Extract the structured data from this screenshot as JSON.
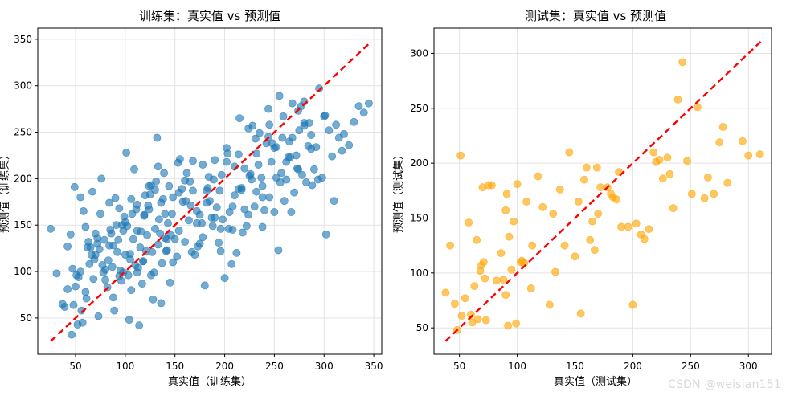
{
  "watermark": "CSDN @weisian151",
  "chart_data": [
    {
      "type": "scatter",
      "title": "训练集：真实值 vs 预测值",
      "xlabel": "真实值（训练集）",
      "ylabel": "预测值（训练集）",
      "xlim": [
        12,
        358
      ],
      "ylim": [
        11,
        362
      ],
      "xticks": [
        50,
        100,
        150,
        200,
        250,
        300,
        350
      ],
      "yticks": [
        50,
        100,
        150,
        200,
        250,
        300,
        350
      ],
      "grid": true,
      "reference_line": {
        "style": "red dashed",
        "x": [
          25,
          346
        ],
        "y": [
          25,
          346
        ]
      },
      "series": [
        {
          "color": "#1f77b4",
          "x": [
            25,
            31,
            37,
            39,
            42,
            42,
            45,
            46,
            47,
            48,
            49,
            50,
            51,
            52,
            53,
            55,
            56,
            57,
            58,
            60,
            61,
            63,
            64,
            65,
            67,
            68,
            69,
            70,
            72,
            73,
            74,
            75,
            76,
            78,
            79,
            80,
            82,
            83,
            84,
            85,
            86,
            87,
            88,
            89,
            90,
            92,
            93,
            94,
            95,
            96,
            97,
            98,
            99,
            100,
            101,
            102,
            103,
            104,
            105,
            106,
            107,
            108,
            109,
            110,
            111,
            112,
            113,
            114,
            115,
            116,
            117,
            118,
            119,
            120,
            121,
            122,
            123,
            124,
            125,
            126,
            127,
            128,
            129,
            130,
            131,
            132,
            133,
            134,
            135,
            136,
            137,
            138,
            139,
            140,
            141,
            142,
            143,
            144,
            145,
            146,
            148,
            150,
            152,
            153,
            155,
            157,
            158,
            160,
            162,
            164,
            165,
            167,
            168,
            170,
            172,
            173,
            175,
            177,
            178,
            180,
            182,
            183,
            185,
            187,
            188,
            190,
            192,
            194,
            195,
            197,
            198,
            200,
            202,
            204,
            205,
            207,
            208,
            210,
            212,
            214,
            215,
            217,
            218,
            220,
            222,
            224,
            225,
            227,
            228,
            230,
            232,
            234,
            235,
            237,
            238,
            240,
            242,
            244,
            245,
            247,
            248,
            250,
            252,
            254,
            255,
            257,
            258,
            260,
            262,
            264,
            265,
            267,
            268,
            270,
            272,
            274,
            275,
            277,
            278,
            280,
            282,
            284,
            285,
            287,
            288,
            290,
            292,
            295,
            298,
            300,
            302,
            305,
            308,
            310,
            312,
            315,
            318,
            320,
            325,
            330,
            335,
            340,
            345,
            60,
            66,
            72,
            80,
            88,
            94,
            100,
            106,
            112,
            118,
            124,
            130,
            136,
            142,
            148,
            154,
            160,
            166,
            172,
            178,
            184,
            190,
            196,
            202,
            208,
            214,
            220,
            226,
            232,
            238,
            244,
            250,
            256,
            262,
            268,
            274,
            280,
            55,
            62,
            70,
            77,
            84,
            91,
            98,
            105,
            112,
            119,
            126,
            133,
            140,
            147,
            154,
            161,
            168,
            175,
            182,
            189,
            196,
            203,
            210,
            217,
            224,
            231,
            238,
            245,
            252,
            259,
            266,
            273,
            280,
            287,
            294,
            301
          ],
          "y": [
            146,
            98,
            65,
            62,
            81,
            127,
            140,
            32,
            103,
            64,
            191,
            84,
            96,
            43,
            94,
            180,
            58,
            45,
            165,
            148,
            71,
            132,
            108,
            126,
            186,
            92,
            113,
            118,
            136,
            52,
            124,
            162,
            200,
            99,
            134,
            91,
            83,
            112,
            174,
            145,
            141,
            105,
            72,
            58,
            179,
            121,
            134,
            168,
            101,
            90,
            150,
            99,
            159,
            118,
            228,
            149,
            96,
            48,
            113,
            80,
            162,
            135,
            210,
            107,
            167,
            99,
            104,
            42,
            126,
            143,
            87,
            111,
            160,
            182,
            122,
            139,
            171,
            192,
            183,
            96,
            121,
            70,
            99,
            146,
            197,
            244,
            129,
            156,
            141,
            66,
            109,
            178,
            206,
            162,
            122,
            123,
            152,
            192,
            88,
            139,
            180,
            135,
            116,
            217,
            221,
            189,
            175,
            132,
            206,
            155,
            197,
            121,
            187,
            118,
            165,
            127,
            161,
            152,
            215,
            85,
            187,
            190,
            176,
            158,
            149,
            220,
            169,
            131,
            187,
            204,
            156,
            93,
            233,
            146,
            164,
            108,
            170,
            182,
            120,
            226,
            265,
            190,
            142,
            211,
            149,
            254,
            203,
            199,
            257,
            170,
            186,
            215,
            249,
            201,
            148,
            166,
            238,
            275,
            180,
            218,
            238,
            164,
            201,
            123,
            289,
            206,
            244,
            176,
            199,
            223,
            240,
            164,
            281,
            185,
            225,
            273,
            252,
            278,
            204,
            260,
            196,
            235,
            260,
            232,
            193,
            210,
            234,
            297,
            201,
            267,
            140,
            252,
            224,
            176,
            258,
            244,
            230,
            248,
            236,
            261,
            278,
            271,
            281,
            78,
            118,
            130,
            102,
            128,
            95,
            153,
            178,
            144,
            111,
            167,
            188,
            174,
            135,
            110,
            144,
            198,
            171,
            152,
            137,
            202,
            158,
            122,
            218,
            145,
            189,
            167,
            205,
            227,
            180,
            245,
            233,
            196,
            218,
            244,
            210,
            257,
            100,
            126,
            141,
            107,
            128,
            150,
            144,
            119,
            172,
            161,
            193,
            213,
            136,
            162,
            185,
            176,
            219,
            130,
            174,
            199,
            146,
            227,
            213,
            188,
            161,
            243,
            192,
            258,
            234,
            267,
            223,
            211,
            283,
            247,
            199,
            268
          ]
        }
      ]
    },
    {
      "type": "scatter",
      "title": "测试集：真实值 vs 预测值",
      "xlabel": "真实值（测试集）",
      "ylabel": "预测值（测试集）",
      "xlim": [
        28,
        320
      ],
      "ylim": [
        26,
        323
      ],
      "xticks": [
        50,
        100,
        150,
        200,
        250,
        300
      ],
      "yticks": [
        50,
        100,
        150,
        200,
        250,
        300
      ],
      "grid": true,
      "reference_line": {
        "style": "red dashed",
        "x": [
          38,
          311
        ],
        "y": [
          38,
          311
        ]
      },
      "series": [
        {
          "color": "#ffa500",
          "x": [
            38,
            42,
            46,
            48,
            51,
            52,
            55,
            58,
            60,
            61,
            63,
            65,
            66,
            68,
            69,
            70,
            71,
            72,
            73,
            75,
            78,
            82,
            86,
            88,
            90,
            90,
            91,
            92,
            93,
            95,
            97,
            99,
            100,
            103,
            104,
            106,
            108,
            112,
            113,
            118,
            122,
            128,
            131,
            133,
            137,
            141,
            145,
            150,
            153,
            155,
            158,
            160,
            163,
            165,
            167,
            169,
            170,
            172,
            178,
            181,
            183,
            186,
            188,
            190,
            196,
            200,
            203,
            207,
            210,
            214,
            218,
            220,
            223,
            226,
            230,
            232,
            235,
            239,
            243,
            247,
            251,
            256,
            262,
            265,
            270,
            275,
            278,
            282,
            295,
            300,
            310
          ],
          "y": [
            82,
            125,
            72,
            48,
            207,
            61,
            77,
            146,
            62,
            55,
            88,
            130,
            58,
            102,
            107,
            178,
            110,
            95,
            57,
            180,
            180,
            93,
            118,
            94,
            157,
            80,
            172,
            52,
            133,
            103,
            147,
            54,
            181,
            110,
            111,
            109,
            165,
            86,
            125,
            188,
            160,
            71,
            154,
            101,
            176,
            125,
            210,
            115,
            165,
            63,
            185,
            196,
            130,
            147,
            121,
            196,
            154,
            178,
            178,
            172,
            169,
            167,
            192,
            142,
            142,
            71,
            145,
            135,
            131,
            140,
            210,
            201,
            203,
            186,
            205,
            190,
            159,
            258,
            292,
            202,
            172,
            251,
            168,
            187,
            172,
            219,
            233,
            182,
            220,
            207,
            208
          ]
        }
      ]
    }
  ]
}
